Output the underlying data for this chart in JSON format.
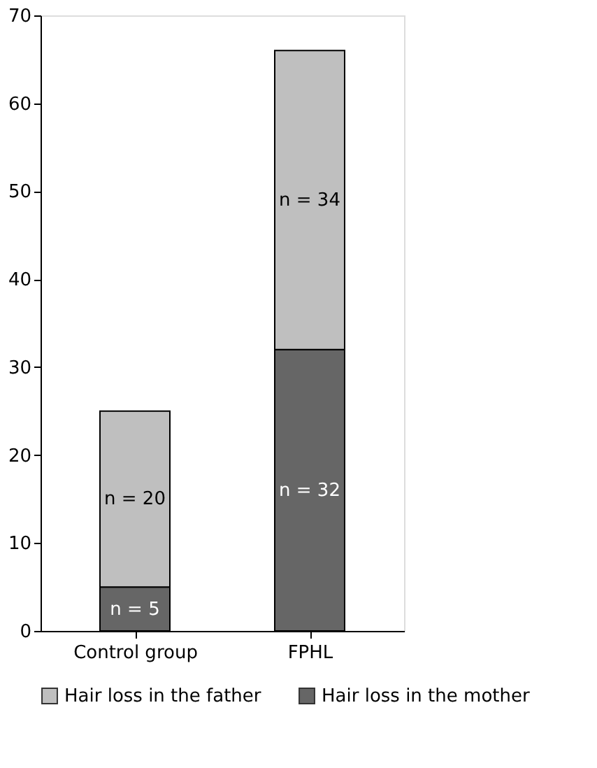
{
  "chart_data": {
    "type": "bar",
    "stacked": true,
    "categories": [
      "Control group",
      "FPHL"
    ],
    "series": [
      {
        "name": "Hair loss in the mother",
        "color": "#666666",
        "values": [
          5,
          32
        ],
        "value_labels": [
          "n = 5",
          "n = 32"
        ]
      },
      {
        "name": "Hair loss in the father",
        "color": "#bfbfbf",
        "values": [
          20,
          34
        ],
        "value_labels": [
          "n = 20",
          "n = 34"
        ]
      }
    ],
    "ylim": [
      0,
      70
    ],
    "yticks": [
      0,
      10,
      20,
      30,
      40,
      50,
      60,
      70
    ],
    "grid": false,
    "legend": "bottom"
  }
}
